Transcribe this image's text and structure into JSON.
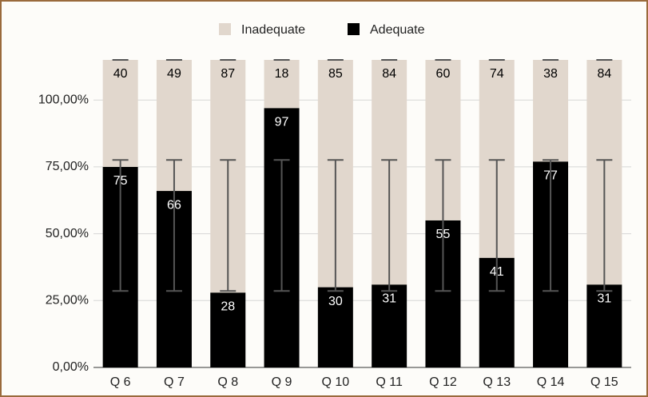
{
  "chart_data": {
    "type": "stacked_bar",
    "categories": [
      "Q 6",
      "Q 7",
      "Q 8",
      "Q 9",
      "Q 10",
      "Q 11",
      "Q 12",
      "Q 13",
      "Q 14",
      "Q 15"
    ],
    "series": [
      {
        "name": "Adequate",
        "color": "#000000",
        "label_color": "#ffffff",
        "values": [
          75,
          66,
          28,
          97,
          30,
          31,
          55,
          41,
          77,
          31
        ]
      },
      {
        "name": "Inadequate",
        "color": "#e1d7cd",
        "label_color": "#000000",
        "values": [
          40,
          49,
          87,
          18,
          85,
          84,
          60,
          74,
          38,
          84
        ]
      }
    ],
    "error_bars": {
      "series": 0,
      "low": 28.6,
      "high": 77.6
    },
    "ylim": [
      0,
      115
    ],
    "yticks": [
      {
        "value": 0,
        "label": "0,00%"
      },
      {
        "value": 25,
        "label": "25,00%"
      },
      {
        "value": 50,
        "label": "50,00%"
      },
      {
        "value": 75,
        "label": "75,00%"
      },
      {
        "value": 100,
        "label": "100,00%"
      }
    ],
    "grid": true,
    "legend": "top"
  }
}
